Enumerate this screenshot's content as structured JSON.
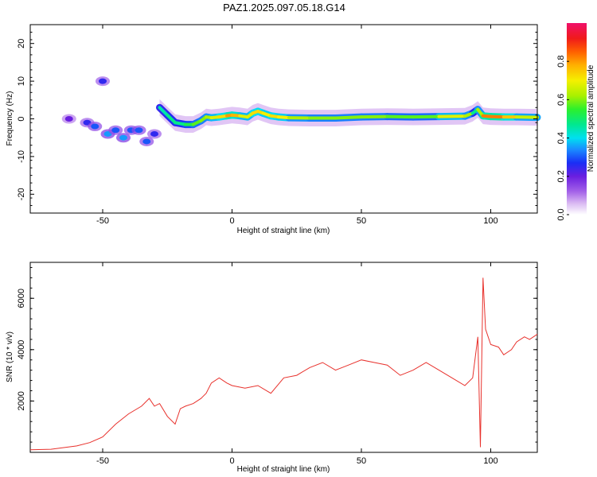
{
  "title": "PAZ1.2025.097.05.18.G14",
  "colorbar": {
    "label": "Normalized spectral amplitude",
    "ticks": [
      0.0,
      0.2,
      0.4,
      0.6,
      0.8
    ],
    "tick_labels": [
      "0.0",
      "0.2",
      "0.4",
      "0.6",
      "0.8"
    ]
  },
  "chart_data": [
    {
      "type": "heatmap",
      "name": "spectrogram",
      "xlabel": "Height of straight line (km)",
      "ylabel": "Frequency (Hz)",
      "xlim": [
        -78,
        118
      ],
      "ylim": [
        -25,
        25
      ],
      "xticks": [
        -50,
        0,
        50,
        100
      ],
      "xtick_labels": [
        "-50",
        "0",
        "50",
        "100"
      ],
      "yticks": [
        -20,
        -10,
        0,
        10,
        20
      ],
      "ytick_labels": [
        "-20",
        "-10",
        "0",
        "10",
        "20"
      ],
      "ridge": {
        "x": [
          -28,
          -25,
          -22,
          -18,
          -15,
          -12,
          -10,
          -8,
          -5,
          -2,
          0,
          3,
          6,
          8,
          10,
          12,
          15,
          18,
          22,
          30,
          40,
          50,
          60,
          70,
          80,
          90,
          93,
          95,
          97,
          100,
          105,
          110,
          118
        ],
        "freq": [
          3,
          1,
          -1,
          -1.5,
          -1.5,
          -0.5,
          0.5,
          0.3,
          0.5,
          0.8,
          1,
          0.8,
          0.5,
          1.5,
          2,
          1.5,
          0.8,
          0.5,
          0.3,
          0.2,
          0.2,
          0.5,
          0.6,
          0.5,
          0.6,
          0.7,
          1.5,
          2.5,
          0.8,
          0.6,
          0.5,
          0.5,
          0.4
        ],
        "amplitude": [
          0.4,
          0.5,
          0.45,
          0.5,
          0.55,
          0.6,
          0.6,
          0.65,
          0.7,
          0.75,
          0.85,
          0.7,
          0.65,
          0.7,
          0.75,
          0.7,
          0.7,
          0.75,
          0.65,
          0.6,
          0.6,
          0.6,
          0.6,
          0.55,
          0.6,
          0.75,
          0.5,
          0.45,
          0.8,
          0.85,
          0.8,
          0.7,
          0.6
        ]
      },
      "blobs": [
        {
          "x": -63,
          "freq": 0,
          "amplitude": 0.2
        },
        {
          "x": -56,
          "freq": -1,
          "amplitude": 0.25
        },
        {
          "x": -53,
          "freq": -2,
          "amplitude": 0.3
        },
        {
          "x": -50,
          "freq": 10,
          "amplitude": 0.25
        },
        {
          "x": -48,
          "freq": -4,
          "amplitude": 0.35
        },
        {
          "x": -45,
          "freq": -3,
          "amplitude": 0.3
        },
        {
          "x": -42,
          "freq": -5,
          "amplitude": 0.35
        },
        {
          "x": -39,
          "freq": -3,
          "amplitude": 0.3
        },
        {
          "x": -36,
          "freq": -3,
          "amplitude": 0.3
        },
        {
          "x": -33,
          "freq": -6,
          "amplitude": 0.3
        },
        {
          "x": -30,
          "freq": -4,
          "amplitude": 0.25
        }
      ]
    },
    {
      "type": "line",
      "name": "snr",
      "xlabel": "Height of straight line (km)",
      "ylabel": "SNR (10 * v/v)",
      "xlim": [
        -78,
        118
      ],
      "ylim": [
        0,
        7400
      ],
      "xticks": [
        -50,
        0,
        50,
        100
      ],
      "xtick_labels": [
        "-50",
        "0",
        "50",
        "100"
      ],
      "yticks": [
        2000,
        4000,
        6000
      ],
      "ytick_labels": [
        "2000",
        "4000",
        "6000"
      ],
      "color": "#e8312c",
      "x": [
        -78,
        -70,
        -60,
        -55,
        -50,
        -45,
        -40,
        -35,
        -32,
        -30,
        -28,
        -25,
        -22,
        -20,
        -18,
        -15,
        -12,
        -10,
        -8,
        -5,
        -2,
        0,
        5,
        10,
        15,
        20,
        25,
        30,
        35,
        40,
        45,
        50,
        55,
        60,
        65,
        70,
        75,
        80,
        85,
        90,
        93,
        95,
        96,
        97,
        98,
        100,
        103,
        105,
        108,
        110,
        113,
        115,
        118
      ],
      "y": [
        100,
        120,
        250,
        380,
        600,
        1100,
        1500,
        1800,
        2100,
        1800,
        1900,
        1400,
        1100,
        1700,
        1800,
        1900,
        2100,
        2300,
        2700,
        2900,
        2700,
        2600,
        2500,
        2600,
        2300,
        2900,
        3000,
        3300,
        3500,
        3200,
        3400,
        3600,
        3500,
        3400,
        3000,
        3200,
        3500,
        3200,
        2900,
        2600,
        2900,
        4500,
        200,
        6800,
        4800,
        4200,
        4100,
        3800,
        4000,
        4300,
        4500,
        4400,
        4600
      ]
    }
  ]
}
